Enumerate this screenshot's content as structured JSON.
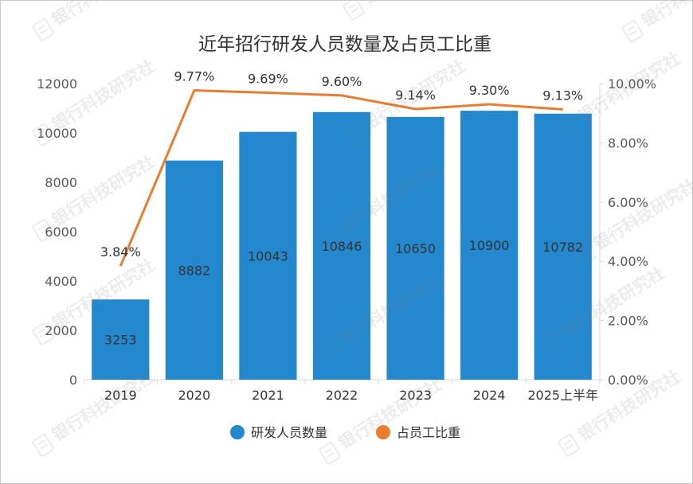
{
  "chart_data": {
    "type": "bar",
    "title": "近年招行研发人员数量及占员工比重",
    "categories": [
      "2019",
      "2020",
      "2021",
      "2022",
      "2023",
      "2024",
      "2025上半年"
    ],
    "series": [
      {
        "name": "研发人员数量",
        "type": "bar",
        "axis": "left",
        "values": [
          3253,
          8882,
          10043,
          10846,
          10650,
          10900,
          10782
        ],
        "labels": [
          "3253",
          "8882",
          "10043",
          "10846",
          "10650",
          "10900",
          "10782"
        ]
      },
      {
        "name": "占员工比重",
        "type": "line",
        "axis": "right",
        "values": [
          3.84,
          9.77,
          9.69,
          9.6,
          9.14,
          9.3,
          9.13
        ],
        "labels": [
          "3.84%",
          "9.77%",
          "9.69%",
          "9.60%",
          "9.14%",
          "9.30%",
          "9.13%"
        ]
      }
    ],
    "y_left": {
      "lim": [
        0,
        12000
      ],
      "ticks": [
        0,
        2000,
        4000,
        6000,
        8000,
        10000,
        12000
      ],
      "tick_labels": [
        "0",
        "2000",
        "4000",
        "6000",
        "8000",
        "10000",
        "12000"
      ]
    },
    "y_right": {
      "lim": [
        0,
        10
      ],
      "ticks": [
        0,
        2,
        4,
        6,
        8,
        10
      ],
      "tick_labels": [
        "0.00%",
        "2.00%",
        "4.00%",
        "6.00%",
        "8.00%",
        "10.00%"
      ]
    },
    "legend": {
      "position": "bottom"
    },
    "grid": false,
    "colors": {
      "bar": "#2488CF",
      "line": "#E87D2F",
      "text": "#333333",
      "axis": "#d9d9d9",
      "tick": "#595959"
    }
  },
  "watermark": {
    "text": "银行科技研究社",
    "icon": "document-icon"
  }
}
